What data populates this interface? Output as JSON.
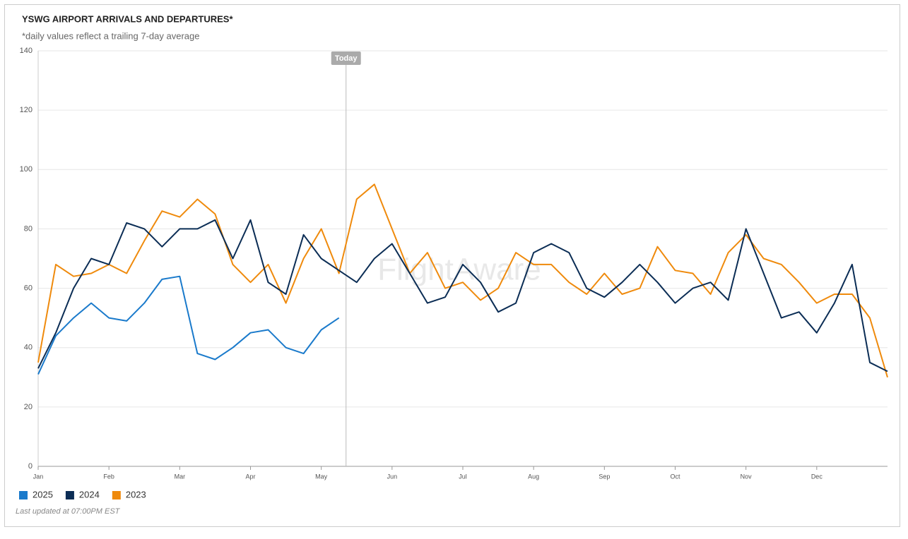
{
  "chart_data": {
    "type": "line",
    "title": "YSWG AIRPORT ARRIVALS AND DEPARTURES*",
    "subtitle": "*daily values reflect a trailing 7-day average",
    "annotation": "Today",
    "watermark": "FlightAware",
    "footer": "Last updated at 07:00PM EST",
    "categories": [
      "Jan",
      null,
      null,
      null,
      "Feb",
      null,
      null,
      null,
      "Mar",
      null,
      null,
      null,
      "Apr",
      null,
      null,
      null,
      "May",
      null,
      null,
      null,
      "Jun",
      null,
      null,
      null,
      "Jul",
      null,
      null,
      null,
      "Aug",
      null,
      null,
      null,
      "Sep",
      null,
      null,
      null,
      "Oct",
      null,
      null,
      null,
      "Nov",
      null,
      null,
      null,
      "Dec",
      null,
      null,
      null,
      null
    ],
    "series": [
      {
        "name": "2025",
        "color": "#1a7acb",
        "values": [
          31,
          44,
          50,
          55,
          50,
          49,
          55,
          63,
          64,
          38,
          36,
          40,
          45,
          46,
          40,
          38,
          46,
          50,
          null,
          null,
          null,
          null,
          null,
          null,
          null,
          null,
          null,
          null,
          null,
          null,
          null,
          null,
          null,
          null,
          null,
          null,
          null,
          null,
          null,
          null,
          null,
          null,
          null,
          null,
          null,
          null,
          null,
          null,
          null
        ]
      },
      {
        "name": "2024",
        "color": "#0b2d55",
        "values": [
          33,
          45,
          60,
          70,
          68,
          82,
          80,
          74,
          80,
          80,
          83,
          70,
          83,
          62,
          58,
          78,
          70,
          66,
          62,
          70,
          75,
          65,
          55,
          57,
          68,
          62,
          52,
          55,
          72,
          75,
          72,
          60,
          57,
          62,
          68,
          62,
          55,
          60,
          62,
          56,
          80,
          65,
          50,
          52,
          45,
          55,
          68,
          35,
          32
        ]
      },
      {
        "name": "2023",
        "color": "#ef8a0c",
        "values": [
          35,
          68,
          64,
          65,
          68,
          65,
          76,
          86,
          84,
          90,
          85,
          68,
          62,
          68,
          55,
          70,
          80,
          65,
          90,
          95,
          80,
          65,
          72,
          60,
          62,
          56,
          60,
          72,
          68,
          68,
          62,
          58,
          65,
          58,
          60,
          74,
          66,
          65,
          58,
          72,
          78,
          70,
          68,
          62,
          55,
          58,
          58,
          50,
          30
        ]
      }
    ],
    "ylim": [
      0,
      140
    ],
    "yticks": [
      0,
      20,
      40,
      60,
      80,
      100,
      120,
      140
    ],
    "grid": true,
    "legend": "bottom-left"
  }
}
